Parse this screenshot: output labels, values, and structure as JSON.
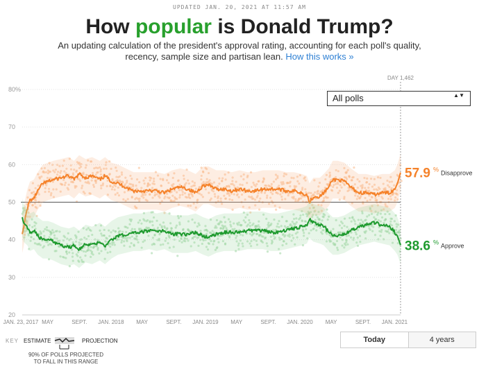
{
  "header": {
    "updated": "UPDATED JAN. 20, 2021 AT 11:57 AM",
    "title_pre": "How ",
    "title_hl": "popular",
    "title_post": " is Donald Trump?",
    "subtitle": "An updating calculation of the president's approval rating, accounting for each poll's quality, recency, sample size and partisan lean.",
    "subtitle_link": "How this works »"
  },
  "controls": {
    "dropdown_value": "All polls",
    "dropdown_arrows": "▲▼",
    "btn_today": "Today",
    "btn_4years": "4 years"
  },
  "key": {
    "label": "KEY",
    "estimate": "ESTIMATE",
    "projection": "PROJECTION",
    "note_line1": "90% OF POLLS PROJECTED",
    "note_line2": "TO FALL IN THIS RANGE"
  },
  "colors": {
    "disapprove": "#f5822a",
    "approve": "#1e9a2e",
    "disapprove_dots": "#f9b98a",
    "approve_dots": "#9fd6a2",
    "grid": "#e3e3e3"
  },
  "chart_data": {
    "type": "line",
    "title": "How popular is Donald Trump?",
    "ylim": [
      20,
      80
    ],
    "yticks": [
      "20",
      "30",
      "40",
      "50",
      "60",
      "70",
      "80%"
    ],
    "ytick_values": [
      20,
      30,
      40,
      50,
      60,
      70,
      80
    ],
    "xlim_days": [
      0,
      1462
    ],
    "reference_line": 50,
    "xticks": [
      {
        "label": "JAN. 23, 2017",
        "day": 0
      },
      {
        "label": "MAY",
        "day": 98
      },
      {
        "label": "SEPT.",
        "day": 221
      },
      {
        "label": "JAN. 2018",
        "day": 343
      },
      {
        "label": "MAY",
        "day": 463
      },
      {
        "label": "SEPT.",
        "day": 586
      },
      {
        "label": "JAN. 2019",
        "day": 708
      },
      {
        "label": "MAY",
        "day": 828
      },
      {
        "label": "SEPT.",
        "day": 951
      },
      {
        "label": "JAN. 2020",
        "day": 1073
      },
      {
        "label": "MAY",
        "day": 1194
      },
      {
        "label": "SEPT.",
        "day": 1317
      },
      {
        "label": "JAN. 2021",
        "day": 1439
      }
    ],
    "day_marker": "DAY 1,462",
    "series": [
      {
        "name": "Disapprove",
        "final_value": "57.9",
        "final_label": "Disapprove",
        "points": [
          [
            0,
            41.5
          ],
          [
            5,
            43
          ],
          [
            12,
            46
          ],
          [
            20,
            48.5
          ],
          [
            30,
            50.5
          ],
          [
            45,
            51
          ],
          [
            60,
            53
          ],
          [
            80,
            55
          ],
          [
            100,
            55.5
          ],
          [
            120,
            56
          ],
          [
            150,
            56.5
          ],
          [
            180,
            57
          ],
          [
            200,
            56
          ],
          [
            220,
            57.5
          ],
          [
            245,
            56.5
          ],
          [
            270,
            57
          ],
          [
            300,
            56
          ],
          [
            320,
            57
          ],
          [
            345,
            55.5
          ],
          [
            370,
            55
          ],
          [
            400,
            54
          ],
          [
            430,
            53
          ],
          [
            460,
            53
          ],
          [
            490,
            53
          ],
          [
            520,
            53
          ],
          [
            550,
            52.5
          ],
          [
            580,
            53.5
          ],
          [
            610,
            54
          ],
          [
            640,
            53.5
          ],
          [
            670,
            52.5
          ],
          [
            700,
            54.5
          ],
          [
            720,
            54.5
          ],
          [
            750,
            53.5
          ],
          [
            780,
            53.5
          ],
          [
            810,
            53
          ],
          [
            840,
            53.5
          ],
          [
            870,
            53
          ],
          [
            900,
            53
          ],
          [
            930,
            53.5
          ],
          [
            960,
            53.5
          ],
          [
            990,
            53.5
          ],
          [
            1020,
            53
          ],
          [
            1050,
            53
          ],
          [
            1080,
            52.5
          ],
          [
            1100,
            52
          ],
          [
            1110,
            50
          ],
          [
            1125,
            51.5
          ],
          [
            1150,
            51.5
          ],
          [
            1165,
            52.5
          ],
          [
            1185,
            54
          ],
          [
            1200,
            56
          ],
          [
            1220,
            56
          ],
          [
            1245,
            55.5
          ],
          [
            1270,
            54
          ],
          [
            1300,
            52.5
          ],
          [
            1330,
            52.5
          ],
          [
            1360,
            52
          ],
          [
            1390,
            52.5
          ],
          [
            1420,
            52.5
          ],
          [
            1440,
            53.5
          ],
          [
            1450,
            55
          ],
          [
            1462,
            57.9
          ]
        ]
      },
      {
        "name": "Approve",
        "final_value": "38.6",
        "final_label": "Approve",
        "points": [
          [
            0,
            46
          ],
          [
            5,
            44.5
          ],
          [
            12,
            44
          ],
          [
            20,
            43.5
          ],
          [
            30,
            42
          ],
          [
            45,
            42.5
          ],
          [
            60,
            41
          ],
          [
            80,
            40
          ],
          [
            100,
            40
          ],
          [
            120,
            39.5
          ],
          [
            150,
            38.5
          ],
          [
            180,
            38
          ],
          [
            200,
            38.5
          ],
          [
            220,
            37.5
          ],
          [
            245,
            39
          ],
          [
            270,
            38.5
          ],
          [
            300,
            39.5
          ],
          [
            320,
            38.5
          ],
          [
            345,
            40
          ],
          [
            370,
            41
          ],
          [
            400,
            41.5
          ],
          [
            430,
            42
          ],
          [
            460,
            42
          ],
          [
            490,
            42.5
          ],
          [
            520,
            42
          ],
          [
            550,
            42.5
          ],
          [
            580,
            41.5
          ],
          [
            610,
            41.5
          ],
          [
            640,
            41.5
          ],
          [
            670,
            42
          ],
          [
            700,
            41
          ],
          [
            720,
            40.5
          ],
          [
            750,
            41.5
          ],
          [
            780,
            42
          ],
          [
            810,
            42
          ],
          [
            840,
            42
          ],
          [
            870,
            42.5
          ],
          [
            900,
            42.5
          ],
          [
            930,
            42.5
          ],
          [
            960,
            42
          ],
          [
            990,
            42
          ],
          [
            1020,
            42.5
          ],
          [
            1050,
            43
          ],
          [
            1080,
            43.5
          ],
          [
            1100,
            44
          ],
          [
            1110,
            45.5
          ],
          [
            1125,
            44.5
          ],
          [
            1150,
            44
          ],
          [
            1165,
            43.5
          ],
          [
            1185,
            42
          ],
          [
            1200,
            41
          ],
          [
            1220,
            41
          ],
          [
            1245,
            41.5
          ],
          [
            1270,
            42.5
          ],
          [
            1300,
            43.5
          ],
          [
            1330,
            44
          ],
          [
            1360,
            44.5
          ],
          [
            1390,
            44
          ],
          [
            1420,
            43.5
          ],
          [
            1440,
            42
          ],
          [
            1450,
            41
          ],
          [
            1462,
            38.6
          ]
        ]
      }
    ]
  }
}
